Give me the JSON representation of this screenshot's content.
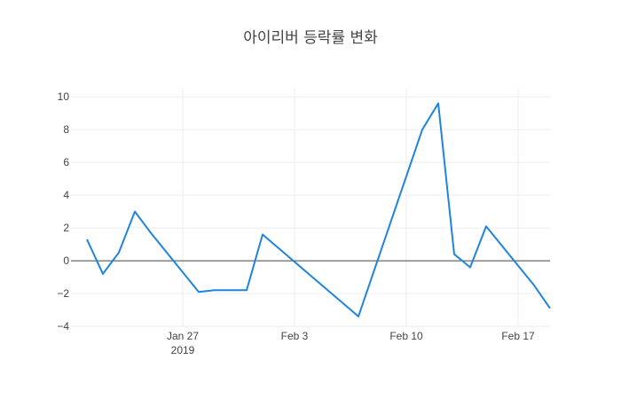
{
  "chart_data": {
    "type": "line",
    "title": "아이리버 등락률 변화",
    "xlabel": "",
    "ylabel": "",
    "ylim": [
      -4,
      10.5
    ],
    "x_range": [
      "2019-01-20",
      "2019-02-19"
    ],
    "y_ticks": [
      -4,
      -2,
      0,
      2,
      4,
      6,
      8,
      10
    ],
    "y_tick_labels": [
      "−4",
      "−2",
      "0",
      "2",
      "4",
      "6",
      "8",
      "10"
    ],
    "x_ticks": [
      {
        "date": "2019-01-27",
        "label": "Jan 27",
        "sublabel": "2019"
      },
      {
        "date": "2019-02-03",
        "label": "Feb 3",
        "sublabel": ""
      },
      {
        "date": "2019-02-10",
        "label": "Feb 10",
        "sublabel": ""
      },
      {
        "date": "2019-02-17",
        "label": "Feb 17",
        "sublabel": ""
      }
    ],
    "grid": true,
    "zero_line": true,
    "line_color": "#1f83e0",
    "series": [
      {
        "x": [
          "2019-01-21",
          "2019-01-22",
          "2019-01-23",
          "2019-01-24",
          "2019-01-25",
          "2019-01-28",
          "2019-01-29",
          "2019-01-30",
          "2019-01-31",
          "2019-02-01",
          "2019-02-07",
          "2019-02-11",
          "2019-02-12",
          "2019-02-13",
          "2019-02-14",
          "2019-02-15",
          "2019-02-18",
          "2019-02-19"
        ],
        "y": [
          1.3,
          -0.8,
          0.5,
          3.0,
          1.7,
          -1.9,
          -1.8,
          -1.8,
          -1.8,
          1.6,
          -3.4,
          8.0,
          9.6,
          0.4,
          -0.4,
          2.1,
          -1.5,
          -2.9
        ]
      }
    ]
  }
}
